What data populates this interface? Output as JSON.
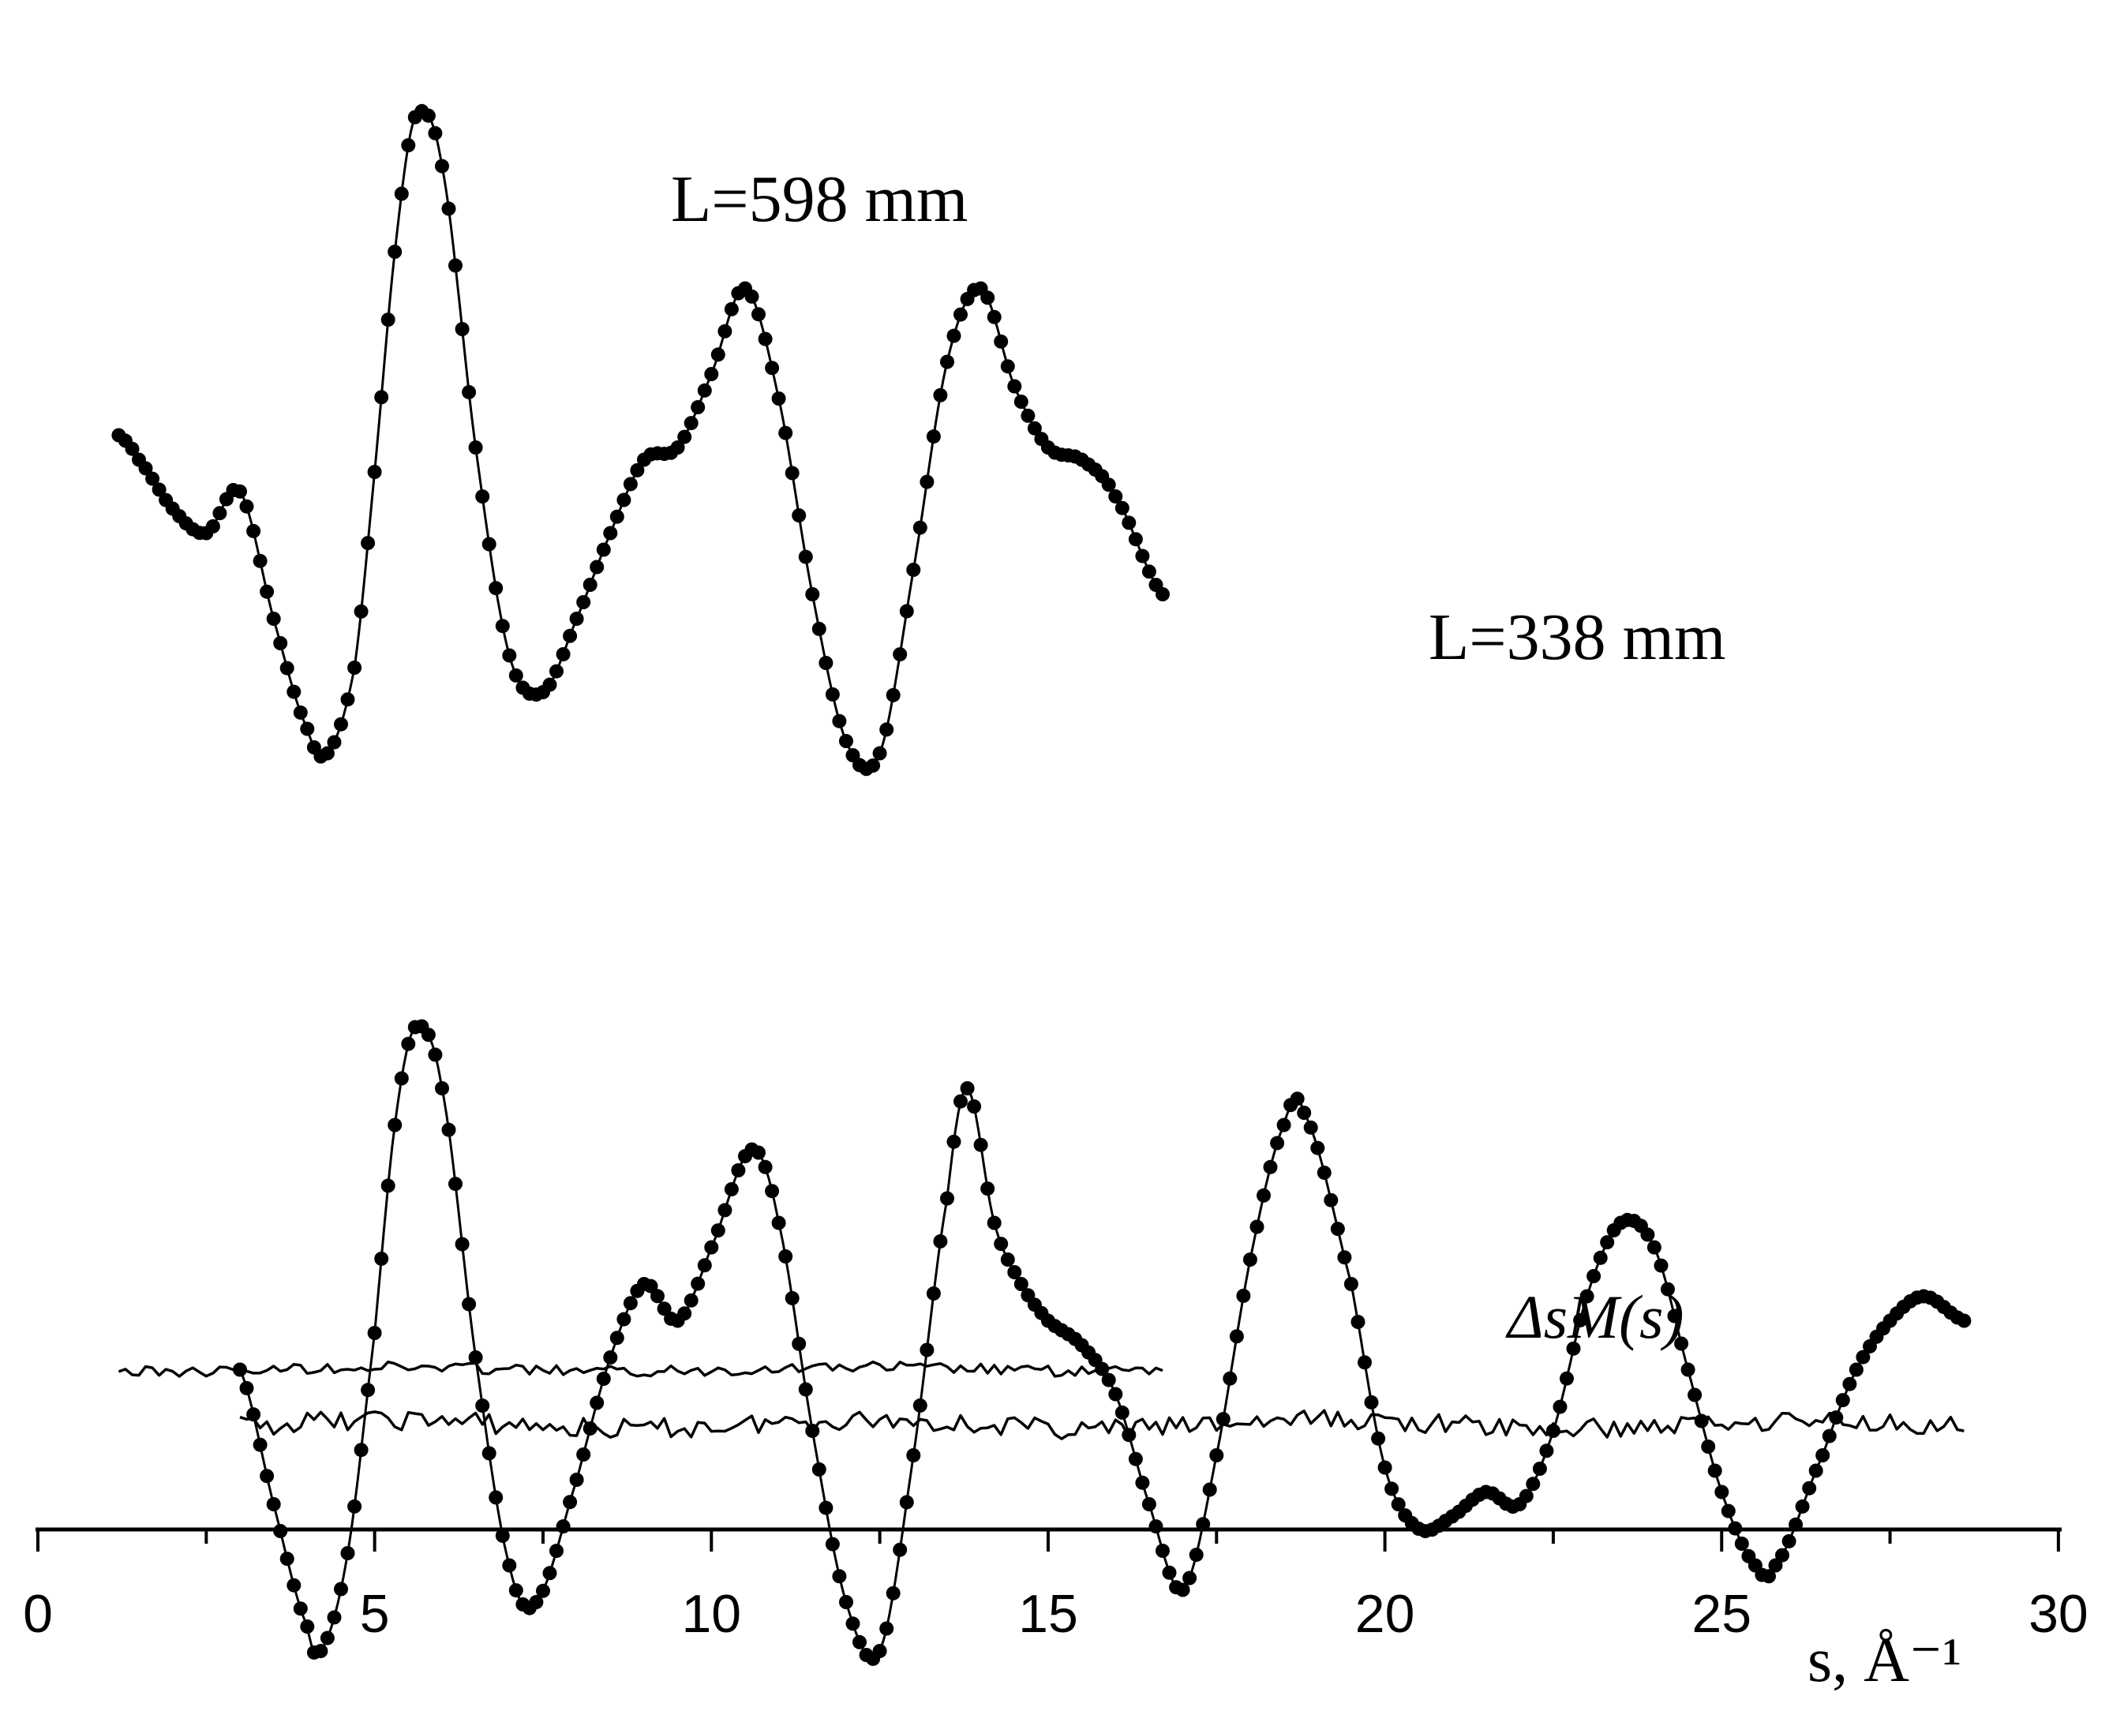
{
  "chart_data": {
    "type": "line",
    "xlabel": "s, Å⁻¹",
    "xlim": [
      0,
      30
    ],
    "x_ticks": [
      "0",
      "5",
      "10",
      "15",
      "20",
      "25",
      "30"
    ],
    "grid": false,
    "legend": "none",
    "annotations": {
      "label_598": "L=598 mm",
      "label_338": "L=338 mm",
      "diff_label": "ΔsM(s)"
    },
    "series": [
      {
        "name": "L=598 mm",
        "x": [
          1.2,
          1.5,
          2.0,
          2.5,
          3.0,
          3.5,
          4.0,
          4.3,
          4.7,
          5.0,
          5.3,
          5.6,
          6.0,
          6.5,
          7.0,
          7.5,
          8.0,
          8.5,
          9.0,
          9.5,
          10.0,
          10.5,
          11.0,
          11.5,
          12.0,
          12.5,
          13.0,
          13.5,
          14.0,
          14.5,
          15.0,
          15.5,
          16.0,
          16.7
        ],
        "y": [
          0.35,
          0.25,
          0.05,
          -0.05,
          0.12,
          -0.4,
          -0.85,
          -0.95,
          -0.6,
          0.2,
          1.1,
          1.65,
          1.45,
          0.3,
          -0.55,
          -0.7,
          -0.4,
          -0.05,
          0.25,
          0.3,
          0.6,
          0.95,
          0.5,
          -0.3,
          -0.9,
          -0.95,
          -0.2,
          0.65,
          0.95,
          0.55,
          0.3,
          0.25,
          0.1,
          -0.3
        ]
      },
      {
        "name": "L=338 mm",
        "x": [
          3.0,
          3.5,
          4.0,
          4.2,
          4.6,
          5.0,
          5.3,
          5.6,
          6.0,
          6.5,
          7.0,
          7.4,
          8.0,
          8.5,
          9.0,
          9.5,
          10.0,
          10.6,
          11.0,
          11.5,
          12.0,
          12.5,
          13.0,
          13.5,
          13.8,
          14.2,
          14.6,
          15.0,
          15.5,
          16.0,
          16.5,
          17.0,
          17.5,
          18.0,
          18.5,
          18.8,
          19.5,
          20.0,
          20.5,
          21.0,
          21.5,
          22.0,
          22.5,
          23.0,
          23.5,
          24.0,
          24.5,
          25.0,
          25.5,
          25.8,
          26.5,
          27.0,
          27.5,
          28.0,
          28.6
        ],
        "y": [
          -1.05,
          -1.6,
          -2.1,
          -2.2,
          -1.8,
          -0.9,
          -0.05,
          0.35,
          0.1,
          -1.0,
          -1.85,
          -2.0,
          -1.5,
          -1.0,
          -0.7,
          -0.85,
          -0.55,
          -0.15,
          -0.45,
          -1.3,
          -2.0,
          -2.2,
          -1.4,
          -0.35,
          0.1,
          -0.45,
          -0.7,
          -0.85,
          -0.95,
          -1.15,
          -1.6,
          -1.95,
          -1.4,
          -0.6,
          -0.05,
          0.0,
          -0.7,
          -1.45,
          -1.7,
          -1.65,
          -1.55,
          -1.6,
          -1.3,
          -0.75,
          -0.45,
          -0.55,
          -1.05,
          -1.55,
          -1.85,
          -1.85,
          -1.4,
          -1.05,
          -0.85,
          -0.75,
          -0.85
        ]
      },
      {
        "name": "ΔsM(s) L=598 mm",
        "x": [
          1.2,
          16.7
        ],
        "y": [
          0.0,
          0.0
        ]
      },
      {
        "name": "ΔsM(s) L=338 mm",
        "x": [
          3.0,
          28.6
        ],
        "y": [
          0.0,
          0.0
        ]
      }
    ]
  }
}
